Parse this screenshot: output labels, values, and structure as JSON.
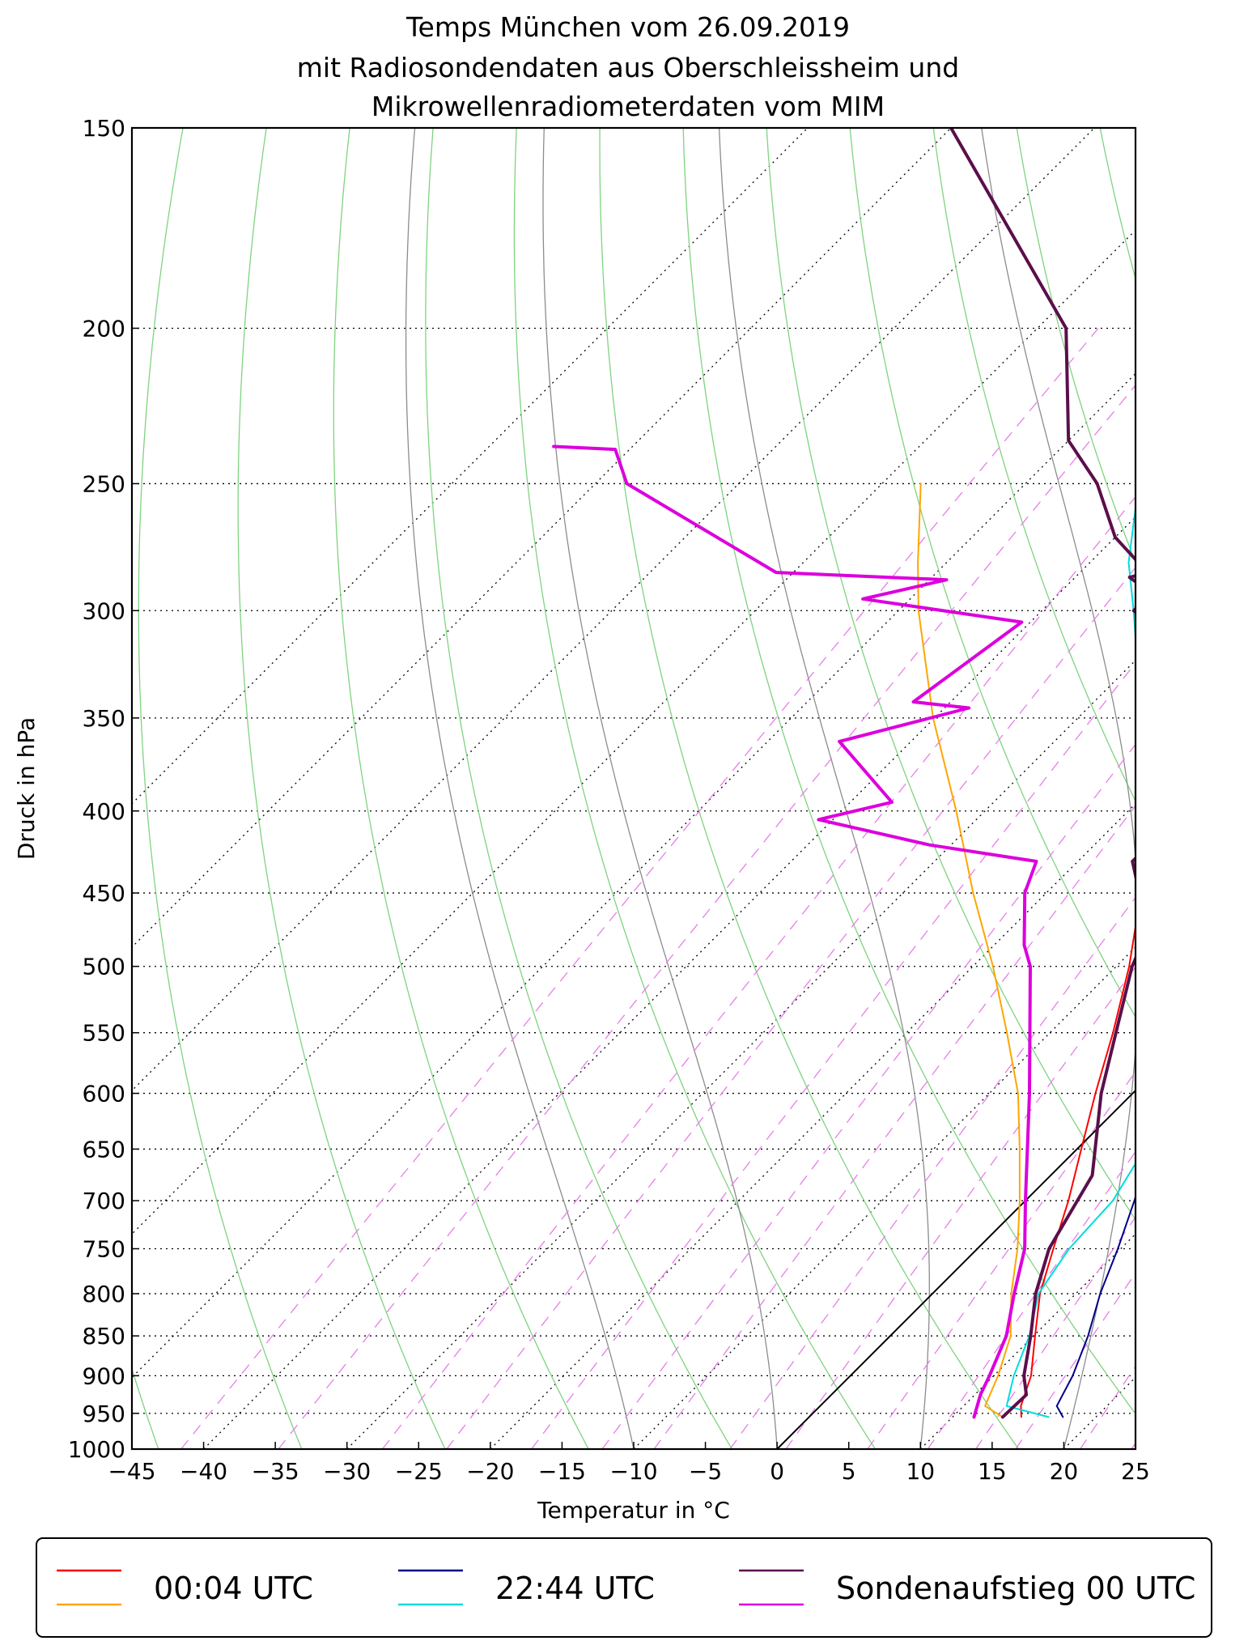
{
  "chart_data": {
    "type": "line",
    "subtype": "skew-T log-p diagram",
    "title": [
      "Temps München vom 26.09.2019",
      "mit Radiosondendaten aus Oberschleissheim und",
      "Mikrowellenradiometerdaten vom MIM"
    ],
    "xlabel": "Temperatur in °C",
    "ylabel": "Druck in hPa",
    "xlim": [
      -45,
      25
    ],
    "ylim": [
      1000,
      150
    ],
    "y_scale": "log",
    "x_ticks": [
      -45,
      -40,
      -35,
      -30,
      -25,
      -20,
      -15,
      -10,
      -5,
      0,
      5,
      10,
      15,
      20,
      25
    ],
    "x_tick_labels": [
      "−45",
      "−40",
      "−35",
      "−30",
      "−25",
      "−20",
      "−15",
      "−10",
      "−5",
      "0",
      "5",
      "10",
      "15",
      "20",
      "25"
    ],
    "y_ticks": [
      150,
      200,
      250,
      300,
      350,
      400,
      450,
      500,
      550,
      600,
      650,
      700,
      750,
      800,
      850,
      900,
      950,
      1000
    ],
    "y_tick_labels": [
      "150",
      "200",
      "250",
      "300",
      "350",
      "400",
      "450",
      "500",
      "550",
      "600",
      "650",
      "700",
      "750",
      "800",
      "850",
      "900",
      "950",
      "1000"
    ],
    "background": {
      "isotherms_C": [
        -90,
        -80,
        -70,
        -60,
        -50,
        -40,
        -30,
        -20,
        -10,
        0,
        10,
        20
      ],
      "dry_adiabats_K": [
        230,
        240,
        250,
        260,
        270,
        280,
        290,
        300,
        310,
        320,
        330,
        340,
        350,
        360,
        370
      ],
      "moist_adiabats_C": [
        -10,
        0,
        10,
        20,
        30,
        40
      ],
      "mixing_ratios_gkg": [
        0.1,
        0.2,
        0.4,
        0.6,
        1,
        1.5,
        2,
        3,
        4,
        6,
        8,
        10,
        12,
        16,
        20
      ],
      "zero_isotherm": 0
    },
    "series": [
      {
        "name": "00:04 UTC Temperatur",
        "color": "#ff0000",
        "width": 2,
        "pressure": [
          955,
          940,
          900,
          850,
          800,
          750,
          700,
          650,
          600,
          550,
          500,
          450,
          400,
          350,
          300,
          280,
          250
        ],
        "temperature": [
          14.8,
          14.0,
          12.6,
          10.1,
          7.5,
          5.3,
          3.0,
          0.3,
          -2.6,
          -5.6,
          -9.1,
          -13.4,
          -18.6,
          -24.9,
          -33.0,
          -36.4,
          -41.7
        ]
      },
      {
        "name": "00:04 UTC Taupunkt",
        "color": "#ffa500",
        "width": 2,
        "pressure": [
          955,
          940,
          900,
          850,
          800,
          750,
          700,
          650,
          600,
          550,
          500,
          450,
          400,
          350,
          300,
          280,
          250
        ],
        "temperature": [
          13.5,
          11.5,
          10.3,
          8.4,
          5.5,
          2.8,
          -0.4,
          -4.0,
          -8.0,
          -13.0,
          -18.6,
          -25.1,
          -32.0,
          -40.1,
          -48.6,
          -52.0,
          -57.3
        ]
      },
      {
        "name": "22:44 UTC Temperatur",
        "color": "#00008b",
        "width": 2,
        "pressure": [
          955,
          940,
          900,
          850,
          800,
          750,
          700,
          650,
          600,
          550,
          500,
          450,
          400,
          350,
          300,
          280,
          250
        ],
        "temperature": [
          17.7,
          16.5,
          15.5,
          13.8,
          11.7,
          9.8,
          7.6,
          5.1,
          2.2,
          -0.8,
          -4.1,
          -8.0,
          -12.3,
          -17.9,
          -24.8,
          -28.5,
          -33.7
        ]
      },
      {
        "name": "22:44 UTC Taupunkt",
        "color": "#00dcdc",
        "width": 2,
        "pressure": [
          955,
          940,
          900,
          850,
          800,
          750,
          700,
          650,
          600,
          550,
          500,
          450,
          400,
          350,
          300,
          280,
          250
        ],
        "temperature": [
          16.7,
          13.0,
          11.4,
          9.7,
          7.4,
          6.4,
          6.1,
          4.7,
          0.9,
          -2.7,
          -7.4,
          -12.9,
          -18.4,
          -25.6,
          -33.6,
          -37.3,
          -42.1
        ]
      },
      {
        "name": "Sondenaufstieg 00 UTC Temperatur",
        "color": "#5b0f4a",
        "width": 4,
        "pressure": [
          955,
          925,
          900,
          850,
          800,
          750,
          675,
          600,
          500,
          475,
          430,
          420,
          410,
          400,
          350,
          304,
          300,
          295,
          290,
          286,
          284,
          270,
          250,
          235,
          200,
          150
        ],
        "temperature": [
          13.5,
          13.6,
          12.1,
          9.8,
          7.2,
          5.0,
          2.9,
          -2.2,
          -8.9,
          -10.3,
          -16.2,
          -16.1,
          -16.0,
          -16.5,
          -24.3,
          -32.1,
          -33.6,
          -33.5,
          -34.6,
          -36.2,
          -35.3,
          -40.0,
          -45.0,
          -50.0,
          -58.0,
          -80.0
        ]
      },
      {
        "name": "Sondenaufstieg 00 UTC Taupunkt",
        "color": "#dc00dc",
        "width": 4,
        "pressure": [
          955,
          925,
          900,
          850,
          800,
          750,
          700,
          600,
          500,
          485,
          450,
          430,
          420,
          405,
          395,
          362,
          345,
          342,
          305,
          295,
          287,
          284,
          250,
          238,
          237
        ],
        "temperature": [
          11.5,
          10.4,
          9.7,
          8.1,
          5.7,
          3.3,
          0.0,
          -7.2,
          -16.0,
          -17.9,
          -21.5,
          -22.9,
          -31.5,
          -41.0,
          -37.1,
          -45.0,
          -38.3,
          -42.6,
          -40.6,
          -53.3,
          -48.8,
          -61.2,
          -77.8,
          -81.0,
          -85.5
        ]
      }
    ]
  },
  "legend": {
    "placement": "bottom",
    "entries": [
      {
        "label": "00:04 UTC",
        "colors": [
          "#ff0000",
          "#ffa500"
        ]
      },
      {
        "label": "22:44 UTC",
        "colors": [
          "#00008b",
          "#00dcdc"
        ]
      },
      {
        "label": "Sondenaufstieg 00 UTC",
        "colors": [
          "#5b0f4a",
          "#dc00dc"
        ]
      }
    ]
  }
}
